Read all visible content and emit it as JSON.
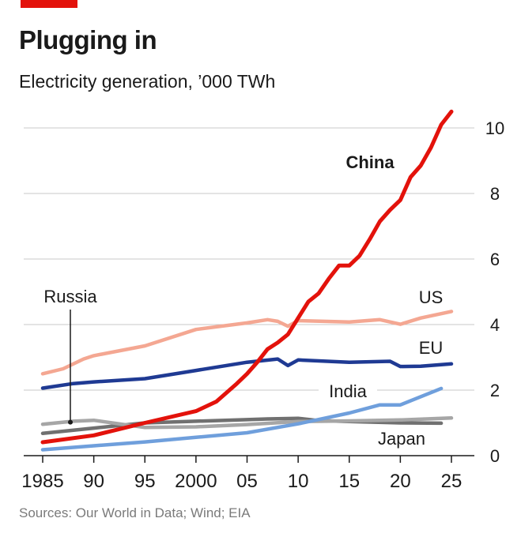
{
  "header": {
    "title": "Plugging in",
    "subtitle": "Electricity generation, ’000 TWh"
  },
  "footer": {
    "source": "Sources: Our World in Data; Wind; EIA"
  },
  "chart_data": {
    "type": "line",
    "title": "Plugging in",
    "subtitle": "Electricity generation, ’000 TWh",
    "xlabel": "",
    "ylabel": "",
    "xlim": [
      1985,
      2025
    ],
    "ylim": [
      0,
      10
    ],
    "x_ticks": [
      {
        "value": 1985,
        "label": "1985"
      },
      {
        "value": 1990,
        "label": "90"
      },
      {
        "value": 1995,
        "label": "95"
      },
      {
        "value": 2000,
        "label": "2000"
      },
      {
        "value": 2005,
        "label": "05"
      },
      {
        "value": 2010,
        "label": "10"
      },
      {
        "value": 2015,
        "label": "15"
      },
      {
        "value": 2020,
        "label": "20"
      },
      {
        "value": 2025,
        "label": "25"
      }
    ],
    "y_ticks": [
      {
        "value": 0,
        "label": "0"
      },
      {
        "value": 2,
        "label": "2"
      },
      {
        "value": 4,
        "label": "4"
      },
      {
        "value": 6,
        "label": "6"
      },
      {
        "value": 8,
        "label": "8"
      },
      {
        "value": 10,
        "label": "10"
      }
    ],
    "series": [
      {
        "name": "Japan",
        "label": "Japan",
        "color": "#707070",
        "x": [
          1985,
          1990,
          1995,
          2000,
          2005,
          2007,
          2010,
          2012,
          2015,
          2020,
          2024
        ],
        "values": [
          0.68,
          0.84,
          1.0,
          1.05,
          1.1,
          1.12,
          1.14,
          1.07,
          1.04,
          1.0,
          0.99
        ]
      },
      {
        "name": "Russia",
        "label": "Russia",
        "color": "#a6a6a6",
        "x": [
          1985,
          1988,
          1990,
          1995,
          2000,
          2005,
          2010,
          2015,
          2020,
          2025
        ],
        "values": [
          0.96,
          1.05,
          1.08,
          0.86,
          0.88,
          0.95,
          1.04,
          1.06,
          1.09,
          1.15
        ]
      },
      {
        "name": "India",
        "label": "India",
        "color": "#6f9fdc",
        "x": [
          1985,
          1990,
          1995,
          2000,
          2005,
          2010,
          2015,
          2018,
          2020,
          2024
        ],
        "values": [
          0.18,
          0.3,
          0.42,
          0.56,
          0.7,
          0.97,
          1.3,
          1.55,
          1.55,
          2.05
        ]
      },
      {
        "name": "EU",
        "label": "EU",
        "color": "#1f3a93",
        "x": [
          1985,
          1988,
          1990,
          1995,
          2000,
          2005,
          2008,
          2009,
          2010,
          2015,
          2019,
          2020,
          2022,
          2025
        ],
        "values": [
          2.06,
          2.2,
          2.25,
          2.35,
          2.6,
          2.85,
          2.95,
          2.75,
          2.92,
          2.85,
          2.88,
          2.72,
          2.73,
          2.8
        ]
      },
      {
        "name": "US",
        "label": "US",
        "color": "#f4a792",
        "x": [
          1985,
          1987,
          1989,
          1990,
          1995,
          2000,
          2005,
          2007,
          2008,
          2009,
          2010,
          2015,
          2018,
          2020,
          2022,
          2025
        ],
        "values": [
          2.5,
          2.65,
          2.95,
          3.05,
          3.35,
          3.85,
          4.05,
          4.15,
          4.1,
          3.95,
          4.12,
          4.08,
          4.15,
          4.01,
          4.2,
          4.4
        ]
      },
      {
        "name": "China",
        "label": "China",
        "color": "#e3120b",
        "x": [
          1985,
          1990,
          1995,
          2000,
          2002,
          2004,
          2005,
          2006,
          2007,
          2008,
          2009,
          2010,
          2011,
          2012,
          2013,
          2014,
          2015,
          2016,
          2017,
          2018,
          2019,
          2020,
          2021,
          2022,
          2023,
          2024,
          2025
        ],
        "values": [
          0.41,
          0.62,
          1.0,
          1.36,
          1.65,
          2.2,
          2.5,
          2.85,
          3.25,
          3.45,
          3.7,
          4.2,
          4.7,
          4.95,
          5.4,
          5.8,
          5.8,
          6.1,
          6.6,
          7.15,
          7.5,
          7.8,
          8.5,
          8.85,
          9.4,
          10.1,
          10.5
        ]
      }
    ]
  }
}
